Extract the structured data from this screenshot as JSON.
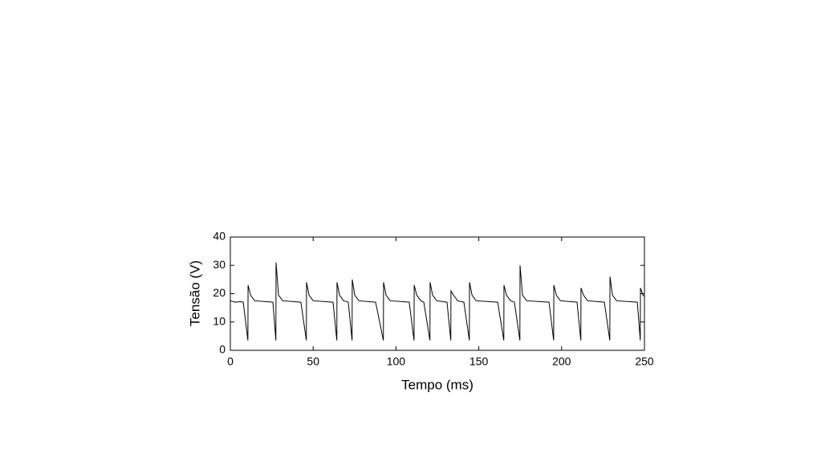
{
  "chart_data": {
    "type": "line",
    "xlabel": "Tempo (ms)",
    "ylabel": "Tensão (V)",
    "xlim": [
      0,
      250
    ],
    "xticks": [
      0,
      50,
      100,
      150,
      200,
      250
    ],
    "ylim": [
      0,
      40
    ],
    "yticks": [
      0,
      10,
      20,
      30,
      40
    ],
    "series": [
      {
        "color": "#000000",
        "x": [
          0,
          3,
          6,
          7.8,
          10.6,
          10.7,
          12.2,
          14.7,
          25.7,
          27.5,
          27.6,
          29.1,
          31.6,
          42.6,
          45.9,
          46.0,
          47.5,
          50.0,
          62.0,
          64.3,
          64.4,
          65.9,
          68.4,
          71.2,
          73.5,
          73.6,
          75.1,
          77.6,
          87.7,
          92.4,
          92.5,
          94.0,
          96.5,
          108.0,
          110.9,
          111.0,
          112.5,
          115.0,
          116.8,
          120.5,
          120.6,
          122.1,
          124.6,
          130.8,
          133.1,
          133.2,
          134.7,
          137.2,
          141.0,
          144.3,
          144.4,
          145.9,
          148.4,
          161.4,
          165.1,
          165.2,
          166.7,
          169.2,
          171.5,
          174.8,
          174.9,
          176.4,
          178.9,
          192.4,
          195.2,
          195.3,
          196.8,
          199.3,
          209.3,
          211.6,
          211.7,
          213.2,
          215.7,
          225.8,
          229.1,
          229.2,
          230.7,
          233.2,
          245.7,
          247.5,
          247.6,
          249.1,
          250
        ],
        "values": [
          17.5,
          17,
          17.2,
          17,
          3.5,
          23,
          19.5,
          17.5,
          17,
          3.5,
          31,
          19.5,
          17.5,
          17,
          3.5,
          24,
          19.5,
          17.5,
          17,
          3.5,
          24,
          19.5,
          17.5,
          17,
          3.5,
          25,
          19.5,
          17.5,
          17,
          3.5,
          24,
          19.5,
          17.5,
          17,
          3.5,
          23,
          19.5,
          17.5,
          17,
          3.5,
          24,
          19.5,
          17.5,
          17,
          3.5,
          21,
          19.5,
          17.5,
          17,
          3.5,
          24,
          19.5,
          17.5,
          17,
          3.5,
          23,
          19.5,
          17.5,
          17,
          3.5,
          30,
          19.5,
          17.5,
          17,
          3.5,
          23,
          19.5,
          17.5,
          17,
          3.5,
          22,
          19.5,
          17.5,
          17,
          3.5,
          26,
          19.5,
          17.5,
          17,
          3.5,
          22,
          19.5,
          19
        ]
      }
    ]
  }
}
